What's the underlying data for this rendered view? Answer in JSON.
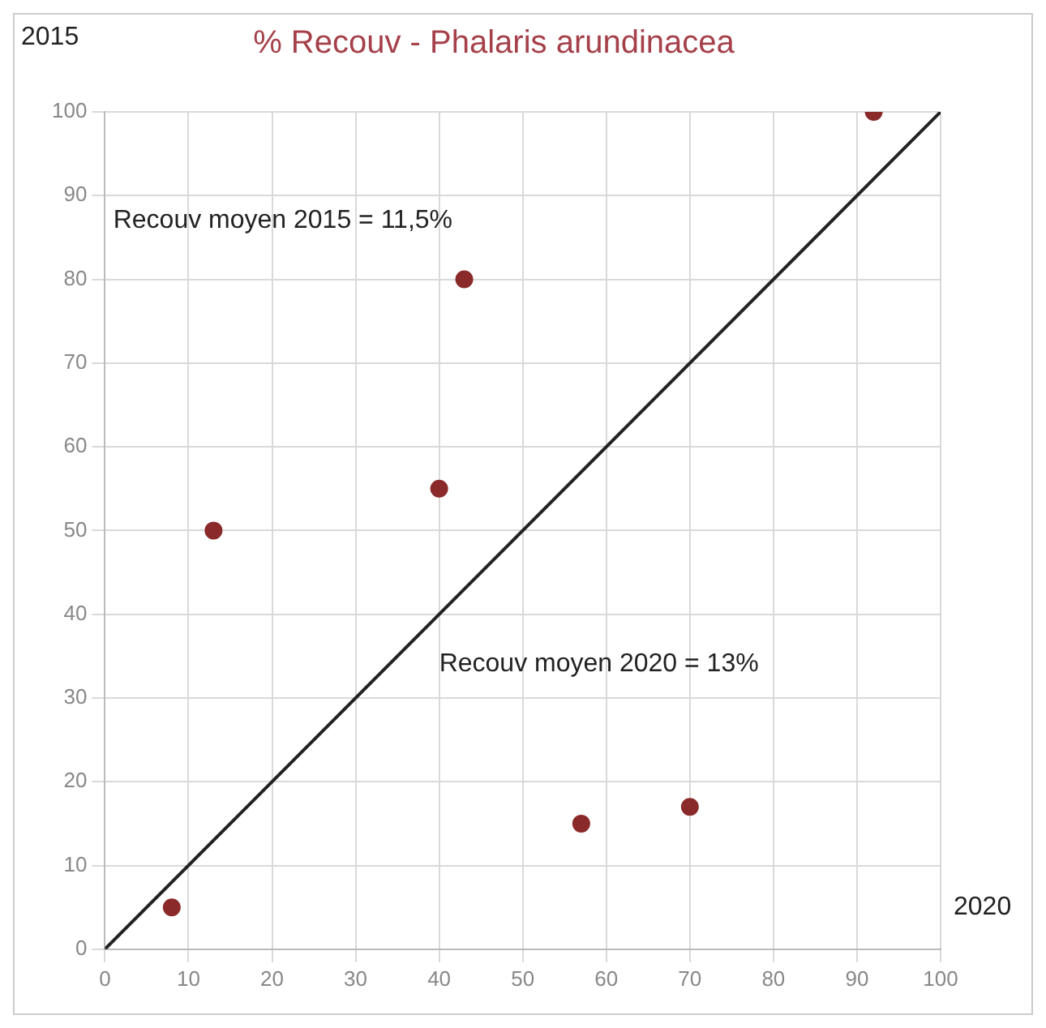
{
  "chart_data": {
    "type": "scatter",
    "title": "% Recouv - Phalaris arundinacea",
    "xlabel": "2020",
    "ylabel": "2015",
    "annotations": [
      "Recouv moyen 2015 = 11,5%",
      "Recouv moyen 2020 = 13%"
    ],
    "series": [
      {
        "color": "#8b2a2a",
        "marker": "circle",
        "x": [
          8,
          13,
          40,
          43,
          57,
          70,
          92
        ],
        "values": [
          5,
          50,
          55,
          80,
          15,
          17,
          100
        ]
      },
      {
        "type": "line",
        "color": "#222222",
        "marker": "none",
        "x": [
          0,
          100
        ],
        "values": [
          0,
          100
        ]
      }
    ],
    "xlim": [
      0,
      100
    ],
    "ylim": [
      0,
      100
    ],
    "xticks": [
      0,
      10,
      20,
      30,
      40,
      50,
      60,
      70,
      80,
      90,
      100
    ],
    "yticks": [
      0,
      10,
      20,
      30,
      40,
      50,
      60,
      70,
      80,
      90,
      100
    ],
    "grid": true,
    "legend": false
  }
}
